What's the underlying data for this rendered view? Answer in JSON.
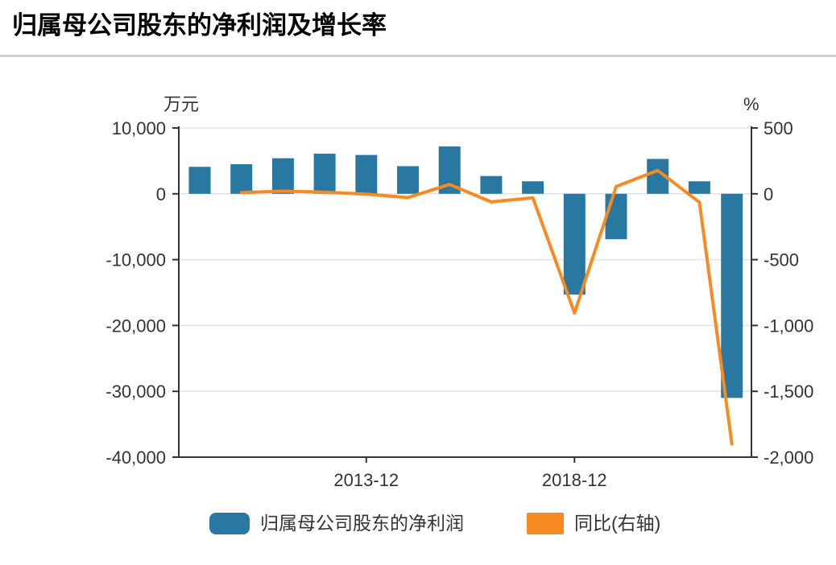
{
  "title": "归属母公司股东的净利润及增长率",
  "colors": {
    "bar": "#2878a2",
    "line": "#f78a20",
    "axis": "#333333",
    "grid": "#e2e2e2",
    "text": "#333333",
    "divider": "#d0d0d0"
  },
  "legend": {
    "items": [
      {
        "label": "归属母公司股东的净利润",
        "swatch_color": "#2878a2"
      },
      {
        "label": "同比(右轴)",
        "swatch_color": "#f78a20"
      }
    ]
  },
  "chart_data": {
    "type": "combo",
    "title": "归属母公司股东的净利润及增长率",
    "grid": true,
    "legend_position": "bottom",
    "x_index": [
      0,
      1,
      2,
      3,
      4,
      5,
      6,
      7,
      8,
      9,
      10,
      11,
      12,
      12.78
    ],
    "x_ticks": [
      {
        "index": 4,
        "label": "2013-12"
      },
      {
        "index": 9,
        "label": "2018-12"
      }
    ],
    "left_axis": {
      "unit": "万元",
      "max": 10000,
      "min": -40000,
      "ticks": [
        {
          "value": 10000,
          "label": "10,000"
        },
        {
          "value": 0,
          "label": "0"
        },
        {
          "value": -10000,
          "label": "-10,000"
        },
        {
          "value": -20000,
          "label": "-20,000"
        },
        {
          "value": -30000,
          "label": "-30,000"
        },
        {
          "value": -40000,
          "label": "-40,000"
        }
      ]
    },
    "right_axis": {
      "unit": "%",
      "max": 500,
      "min": -2000,
      "ticks": [
        {
          "value": 500,
          "label": "500"
        },
        {
          "value": 0,
          "label": "0"
        },
        {
          "value": -500,
          "label": "-500"
        },
        {
          "value": -1000,
          "label": "-1,000"
        },
        {
          "value": -1500,
          "label": "-1,500"
        },
        {
          "value": -2000,
          "label": "-2,000"
        }
      ]
    },
    "series": [
      {
        "name": "归属母公司股东的净利润",
        "type": "bar",
        "axis": "left",
        "color": "#2878a2",
        "values": [
          4100,
          4500,
          5400,
          6100,
          5900,
          4200,
          7200,
          2700,
          1900,
          -15300,
          -6900,
          5300,
          1900,
          -31000
        ]
      },
      {
        "name": "同比(右轴)",
        "type": "line",
        "axis": "right",
        "color": "#f78a20",
        "values": [
          null,
          10,
          20,
          13,
          -3,
          -29,
          71,
          -62,
          -30,
          -905,
          55,
          177,
          -64,
          -1900
        ]
      }
    ]
  }
}
